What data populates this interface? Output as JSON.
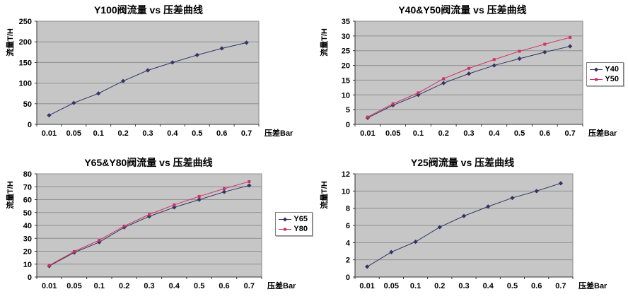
{
  "page": {
    "background": "#ffffff"
  },
  "colors": {
    "plot_bg": "#c6c6c6",
    "plot_border": "#8a8a8a",
    "grid": "#8f8f8f",
    "axis": "#333333",
    "tick_label": "#000000",
    "series_navy": "#333366",
    "series_pink": "#cc3366",
    "legend_bg": "#ffffff",
    "legend_border": "#808080"
  },
  "chart_data": [
    {
      "type": "line",
      "title": "Y100阀流量 vs 压差曲线",
      "ylabel": "流量T/H",
      "xlabel": "压差Bar",
      "categories": [
        "0.01",
        "0.05",
        "0.1",
        "0.2",
        "0.3",
        "0.4",
        "0.5",
        "0.6",
        "0.7"
      ],
      "ylim": [
        0,
        250
      ],
      "ytick": 50,
      "grid": true,
      "legend_position": "none",
      "series": [
        {
          "name": "Y100",
          "color": "#333366",
          "marker": "diamond",
          "values": [
            22,
            52,
            75,
            105,
            131,
            150,
            168,
            184,
            198
          ]
        }
      ]
    },
    {
      "type": "line",
      "title": "Y40&Y50阀流量 vs 压差曲线",
      "ylabel": "流量T/H",
      "xlabel": "压差Bar",
      "categories": [
        "0.01",
        "0.05",
        "0.1",
        "0.2",
        "0.3",
        "0.4",
        "0.5",
        "0.6",
        "0.7"
      ],
      "ylim": [
        0,
        35
      ],
      "ytick": 5,
      "grid": true,
      "legend_position": "right",
      "series": [
        {
          "name": "Y40",
          "color": "#333366",
          "marker": "diamond",
          "values": [
            2.2,
            6.5,
            10,
            14,
            17.2,
            20,
            22.3,
            24.5,
            26.5
          ]
        },
        {
          "name": "Y50",
          "color": "#cc3366",
          "marker": "square",
          "values": [
            2.5,
            7,
            10.7,
            15.5,
            19,
            22,
            24.8,
            27.2,
            29.5
          ]
        }
      ]
    },
    {
      "type": "line",
      "title": "Y65&Y80阀流量 vs 压差曲线",
      "ylabel": "流量T/H",
      "xlabel": "压差Bar",
      "categories": [
        "0.01",
        "0.05",
        "0.1",
        "0.2",
        "0.3",
        "0.4",
        "0.5",
        "0.6",
        "0.7"
      ],
      "ylim": [
        0,
        80
      ],
      "ytick": 10,
      "grid": true,
      "legend_position": "right",
      "series": [
        {
          "name": "Y65",
          "color": "#333366",
          "marker": "diamond",
          "values": [
            8.5,
            19,
            27,
            38.5,
            47,
            54,
            60,
            66,
            71
          ]
        },
        {
          "name": "Y80",
          "color": "#cc3366",
          "marker": "square",
          "values": [
            9,
            19.8,
            28.5,
            39.5,
            48.5,
            56,
            62.5,
            68.5,
            74
          ]
        }
      ]
    },
    {
      "type": "line",
      "title": "Y25阀流量 vs 压差曲线",
      "ylabel": "流量T/H",
      "xlabel": "压差Bar",
      "categories": [
        "0.01",
        "0.05",
        "0.1",
        "0.2",
        "0.3",
        "0.4",
        "0.5",
        "0.6",
        "0.7"
      ],
      "ylim": [
        0,
        12
      ],
      "ytick": 2,
      "grid": true,
      "legend_position": "none",
      "series": [
        {
          "name": "Y25",
          "color": "#333366",
          "marker": "diamond",
          "values": [
            1.2,
            2.9,
            4.1,
            5.8,
            7.1,
            8.2,
            9.2,
            10,
            10.9
          ]
        }
      ]
    }
  ]
}
